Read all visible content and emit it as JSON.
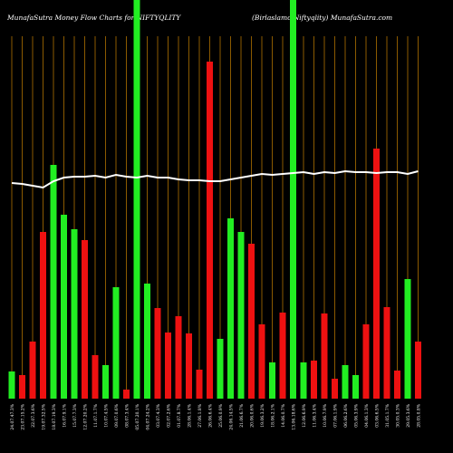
{
  "chart_data": {
    "type": "bar",
    "title": "MunafaSutra  Money Flow  Charts for NIFTYQLITY",
    "subtitle": "(Birlaslamc   Niftyqlity) MunafaSutra.com",
    "categories": [
      "24.07.47.3%",
      "23.07.15.2%",
      "22.07.3.6%",
      "19.07.32.5%",
      "18.07.19.3%",
      "16.07.9.1%",
      "15.07.7.3%",
      "12.07.20.2%",
      "11.07.1.7%",
      "10.07.4.5%",
      "09.07.0.6%",
      "08.07.3.4%",
      "05.07.20.1%",
      "04.07.24.2%",
      "03.07.4.3%",
      "02.07.2.6%",
      "01.07.8.7%",
      "28.06.1.4%",
      "27.06.1.8%",
      "26.06.6.4%",
      "25.06.0.9%",
      "24.06.14.5%",
      "21.06.6.7%",
      "20.06.0.6%",
      "19.06.3.2%",
      "18.06.2.1%",
      "14.06.0.7%",
      "13.06.18.6%",
      "12.06.6.9%",
      "11.06.3.4%",
      "10.06.7.9%",
      "07.06.1.9%",
      "06.06.2.6%",
      "05.06.3.9%",
      "04.06.1.3%",
      "03.06.6.5%",
      "31.05.1.7%",
      "30.05.0.3%",
      "29.05.3.6%",
      "28.05.0.8%"
    ],
    "series": [
      {
        "name": "flow",
        "values": [
          30,
          26,
          63,
          184,
          258,
          203,
          187,
          175,
          48,
          37,
          123,
          10,
          440,
          127,
          100,
          73,
          91,
          72,
          32,
          372,
          66,
          199,
          184,
          171,
          82,
          40,
          95,
          440,
          40,
          42,
          94,
          22,
          37,
          26,
          82,
          276,
          101,
          31,
          132,
          63
        ],
        "colors": [
          "#22ee22",
          "#ee1111",
          "#ee1111",
          "#ee1111",
          "#22ee22",
          "#22ee22",
          "#22ee22",
          "#ee1111",
          "#ee1111",
          "#22ee22",
          "#22ee22",
          "#ee1111",
          "#22ee22",
          "#22ee22",
          "#ee1111",
          "#ee1111",
          "#ee1111",
          "#ee1111",
          "#ee1111",
          "#ee1111",
          "#22ee22",
          "#22ee22",
          "#22ee22",
          "#ee1111",
          "#ee1111",
          "#22ee22",
          "#ee1111",
          "#22ee22",
          "#22ee22",
          "#ee1111",
          "#ee1111",
          "#ee1111",
          "#22ee22",
          "#22ee22",
          "#ee1111",
          "#ee1111",
          "#ee1111",
          "#ee1111",
          "#22ee22",
          "#ee1111"
        ]
      },
      {
        "name": "trend",
        "type": "line",
        "color": "#ffffff",
        "values": [
          238,
          237,
          235,
          233,
          240,
          244,
          245,
          245,
          246,
          244,
          247,
          245,
          244,
          246,
          244,
          244,
          242,
          241,
          241,
          240,
          240,
          242,
          244,
          246,
          248,
          247,
          248,
          249,
          250,
          248,
          250,
          249,
          251,
          250,
          250,
          249,
          250,
          250,
          248,
          251
        ]
      }
    ],
    "ylim": [
      0,
      440
    ],
    "grid": true,
    "grid_color": "#8b5a00"
  }
}
